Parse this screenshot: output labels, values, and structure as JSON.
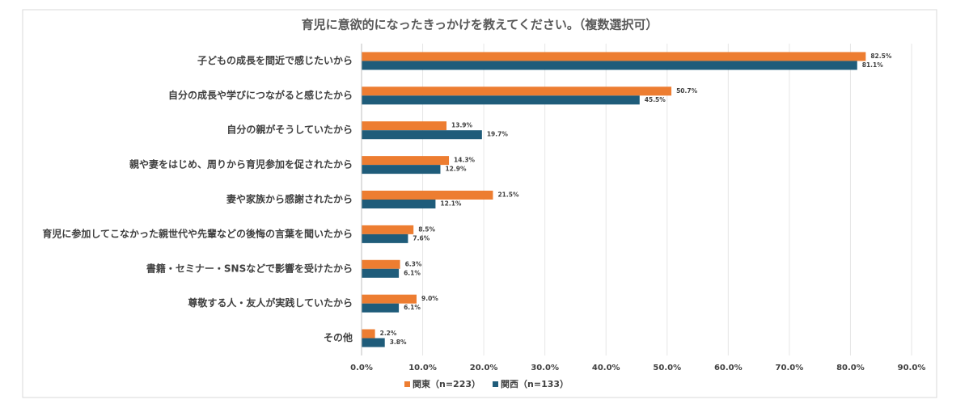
{
  "chart_data": {
    "type": "bar",
    "orientation": "horizontal",
    "title": "育児に意欲的になったきっかけを教えてください。（複数選択可）",
    "categories": [
      "子どもの成長を間近で感じたいから",
      "自分の成長や学びにつながると感じたから",
      "自分の親がそうしていたから",
      "親や妻をはじめ、周りから育児参加を促されたから",
      "妻や家族から感謝されたから",
      "育児に参加してこなかった親世代や先輩などの後悔の言葉を聞いたから",
      "書籍・セミナー・SNSなどで影響を受けたから",
      "尊敬する人・友人が実践していたから",
      "その他"
    ],
    "series": [
      {
        "name": "関東（n=223）",
        "color": "#ED7D31",
        "values": [
          82.5,
          50.7,
          13.9,
          14.3,
          21.5,
          8.5,
          6.3,
          9.0,
          2.2
        ],
        "value_labels": [
          "82.5%",
          "50.7%",
          "13.9%",
          "14.3%",
          "21.5%",
          "8.5%",
          "6.3%",
          "9.0%",
          "2.2%"
        ]
      },
      {
        "name": "関西（n=133）",
        "color": "#1F5C7A",
        "values": [
          81.1,
          45.5,
          19.7,
          12.9,
          12.1,
          7.6,
          6.1,
          6.1,
          3.8
        ],
        "value_labels": [
          "81.1%",
          "45.5%",
          "19.7%",
          "12.9%",
          "12.1%",
          "7.6%",
          "6.1%",
          "6.1%",
          "3.8%"
        ]
      }
    ],
    "xlim": [
      0,
      90
    ],
    "xticks": [
      {
        "value": 0,
        "label": "0.0%"
      },
      {
        "value": 10,
        "label": "10.0%"
      },
      {
        "value": 20,
        "label": "20.0%"
      },
      {
        "value": 30,
        "label": "30.0%"
      },
      {
        "value": 40,
        "label": "40.0%"
      },
      {
        "value": 50,
        "label": "50.0%"
      },
      {
        "value": 60,
        "label": "60.0%"
      },
      {
        "value": 70,
        "label": "70.0%"
      },
      {
        "value": 80,
        "label": "80.0%"
      },
      {
        "value": 90,
        "label": "90.0%"
      }
    ],
    "grid": true,
    "legend": "bottom"
  }
}
